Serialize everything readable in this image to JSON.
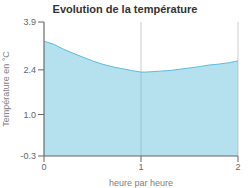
{
  "chart_data": {
    "type": "area",
    "title": "Evolution de la température",
    "xlabel": "heure par heure",
    "ylabel": "Température en °C",
    "x": [
      0,
      0.1,
      0.2,
      0.3,
      0.4,
      0.5,
      0.6,
      0.7,
      0.8,
      0.9,
      1.0,
      1.05,
      1.1,
      1.2,
      1.3,
      1.4,
      1.5,
      1.6,
      1.7,
      1.8,
      1.9,
      2.0
    ],
    "values": [
      3.3,
      3.2,
      3.05,
      2.92,
      2.8,
      2.68,
      2.58,
      2.5,
      2.44,
      2.38,
      2.33,
      2.33,
      2.34,
      2.36,
      2.38,
      2.42,
      2.46,
      2.5,
      2.55,
      2.58,
      2.62,
      2.68
    ],
    "xlim": [
      0,
      2
    ],
    "ylim": [
      -0.3,
      3.9
    ],
    "xticks": [
      0,
      1,
      2
    ],
    "yticks": [
      -0.3,
      {
        "value": 1.0,
        "label": "1.0"
      },
      2.4,
      3.9
    ],
    "color": "#5bbcdc",
    "grid": "x"
  }
}
